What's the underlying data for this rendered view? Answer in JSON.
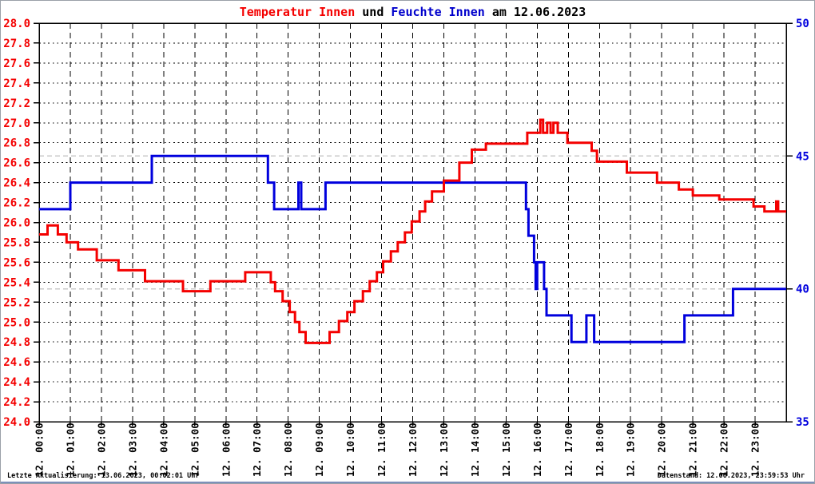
{
  "window_title": "Temperatur Innen und Feuchte Innen am 12.06.2023",
  "footer": {
    "left": "Letzte Aktualisierung: 13.06.2023, 00:02:01 Uhr",
    "right": "Datenstand: 12.06.2023, 23:59:53 Uhr"
  },
  "chart_data": {
    "type": "line",
    "style": "step-after",
    "grid": "on",
    "legend_position": "in-title",
    "title": {
      "series1": "Temperatur Innen",
      "conjunction": " und ",
      "series2": "Feuchte Innen",
      "suffix": " am 12.06.2023"
    },
    "colors": {
      "temperature": "#f40000",
      "humidity": "#0000dd",
      "grid_black": "#000000",
      "grid_gray": "#c9c9c9",
      "border": "#000000"
    },
    "x_axis": {
      "range_hours": [
        0,
        24
      ],
      "tick_step_hours": 1,
      "labels": [
        "12. 00:00",
        "12. 01:00",
        "12. 02:00",
        "12. 03:00",
        "12. 04:00",
        "12. 05:00",
        "12. 06:00",
        "12. 07:00",
        "12. 08:00",
        "12. 09:00",
        "12. 10:00",
        "12. 11:00",
        "12. 12:00",
        "12. 13:00",
        "12. 14:00",
        "12. 15:00",
        "12. 16:00",
        "12. 17:00",
        "12. 18:00",
        "12. 19:00",
        "12. 20:00",
        "12. 21:00",
        "12. 22:00",
        "12. 23:00"
      ]
    },
    "y_left": {
      "unit": "°C",
      "min": 24.0,
      "max": 28.0,
      "step": 0.2,
      "tick_labels": [
        "28.0",
        "27.8",
        "27.6",
        "27.4",
        "27.2",
        "27.0",
        "26.8",
        "26.6",
        "26.4",
        "26.2",
        "26.0",
        "25.8",
        "25.6",
        "25.4",
        "25.2",
        "25.0",
        "24.8",
        "24.6",
        "24.4",
        "24.2",
        "24.0"
      ]
    },
    "y_right": {
      "unit": "%",
      "min": 35,
      "max": 50,
      "tick_labels": [
        "50",
        "45",
        "40",
        "35"
      ],
      "tick_values": [
        50,
        45,
        40,
        35
      ],
      "gray_gridline_values": [
        45,
        40
      ]
    },
    "series": [
      {
        "name": "Feuchte Innen",
        "axis": "right",
        "color": "#0000dd",
        "points": [
          [
            0.0,
            43
          ],
          [
            1.0,
            44
          ],
          [
            3.62,
            45
          ],
          [
            7.35,
            44
          ],
          [
            7.55,
            43
          ],
          [
            8.33,
            44
          ],
          [
            8.42,
            43
          ],
          [
            9.2,
            44
          ],
          [
            15.64,
            43
          ],
          [
            15.72,
            42
          ],
          [
            15.9,
            41
          ],
          [
            15.95,
            40
          ],
          [
            16.0,
            41
          ],
          [
            16.22,
            40
          ],
          [
            16.3,
            39
          ],
          [
            17.1,
            38
          ],
          [
            17.58,
            39
          ],
          [
            17.83,
            38
          ],
          [
            20.73,
            39
          ],
          [
            22.29,
            40
          ]
        ]
      },
      {
        "name": "Temperatur Innen",
        "axis": "left",
        "color": "#f40000",
        "points": [
          [
            0.0,
            25.88
          ],
          [
            0.27,
            25.97
          ],
          [
            0.6,
            25.88
          ],
          [
            0.88,
            25.8
          ],
          [
            1.25,
            25.73
          ],
          [
            1.85,
            25.62
          ],
          [
            2.55,
            25.52
          ],
          [
            3.4,
            25.41
          ],
          [
            4.62,
            25.31
          ],
          [
            5.5,
            25.41
          ],
          [
            6.62,
            25.5
          ],
          [
            7.44,
            25.4
          ],
          [
            7.58,
            25.31
          ],
          [
            7.82,
            25.21
          ],
          [
            8.05,
            25.1
          ],
          [
            8.22,
            25.0
          ],
          [
            8.36,
            24.9
          ],
          [
            8.56,
            24.79
          ],
          [
            9.33,
            24.9
          ],
          [
            9.63,
            25.01
          ],
          [
            9.9,
            25.1
          ],
          [
            10.13,
            25.21
          ],
          [
            10.4,
            25.31
          ],
          [
            10.62,
            25.41
          ],
          [
            10.85,
            25.5
          ],
          [
            11.05,
            25.61
          ],
          [
            11.3,
            25.71
          ],
          [
            11.52,
            25.8
          ],
          [
            11.75,
            25.9
          ],
          [
            11.97,
            26.01
          ],
          [
            12.22,
            26.11
          ],
          [
            12.4,
            26.21
          ],
          [
            12.62,
            26.31
          ],
          [
            13.0,
            26.42
          ],
          [
            13.5,
            26.6
          ],
          [
            13.9,
            26.73
          ],
          [
            14.35,
            26.79
          ],
          [
            15.68,
            26.9
          ],
          [
            16.1,
            27.03
          ],
          [
            16.19,
            26.9
          ],
          [
            16.32,
            27.0
          ],
          [
            16.43,
            26.9
          ],
          [
            16.52,
            27.0
          ],
          [
            16.66,
            26.9
          ],
          [
            16.97,
            26.8
          ],
          [
            17.75,
            26.72
          ],
          [
            17.92,
            26.61
          ],
          [
            18.88,
            26.5
          ],
          [
            19.85,
            26.4
          ],
          [
            20.55,
            26.33
          ],
          [
            21.0,
            26.27
          ],
          [
            21.85,
            26.23
          ],
          [
            22.95,
            26.16
          ],
          [
            23.3,
            26.11
          ],
          [
            23.68,
            26.21
          ],
          [
            23.74,
            26.11
          ]
        ]
      }
    ]
  }
}
